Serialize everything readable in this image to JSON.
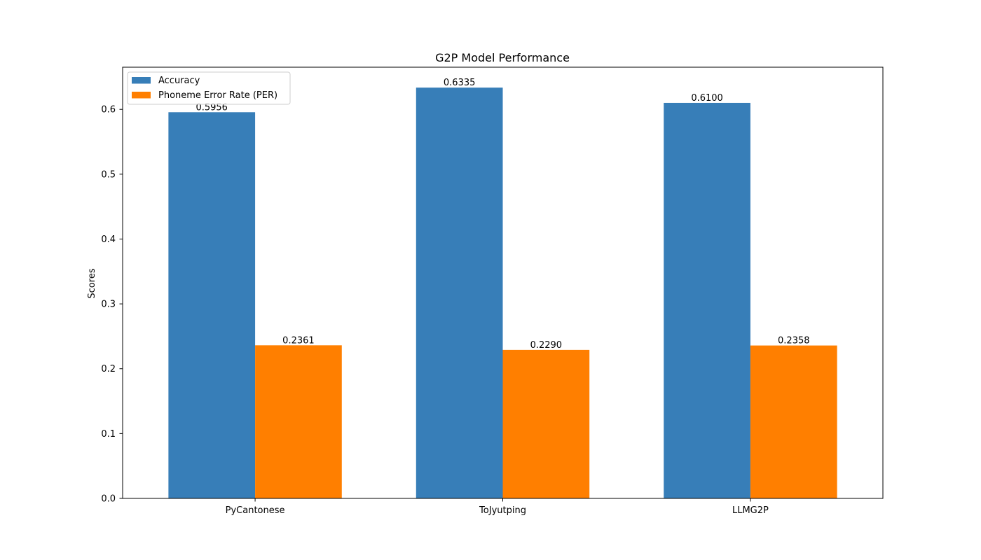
{
  "chart_data": {
    "type": "bar",
    "title": "G2P Model Performance",
    "xlabel": "",
    "ylabel": "Scores",
    "categories": [
      "PyCantonese",
      "ToJyutping",
      "LLMG2P"
    ],
    "series": [
      {
        "name": "Accuracy",
        "color": "#377eb8",
        "values": [
          0.5956,
          0.6335,
          0.61
        ],
        "labels": [
          "0.5956",
          "0.6335",
          "0.6100"
        ]
      },
      {
        "name": "Phoneme Error Rate (PER)",
        "color": "#ff7f00",
        "values": [
          0.2361,
          0.229,
          0.2358
        ],
        "labels": [
          "0.2361",
          "0.2290",
          "0.2358"
        ]
      }
    ],
    "ylim": [
      0,
      0.665
    ],
    "yticks": [
      "0.0",
      "0.1",
      "0.2",
      "0.3",
      "0.4",
      "0.5",
      "0.6"
    ],
    "legend_position": "top-left",
    "grid": false
  }
}
